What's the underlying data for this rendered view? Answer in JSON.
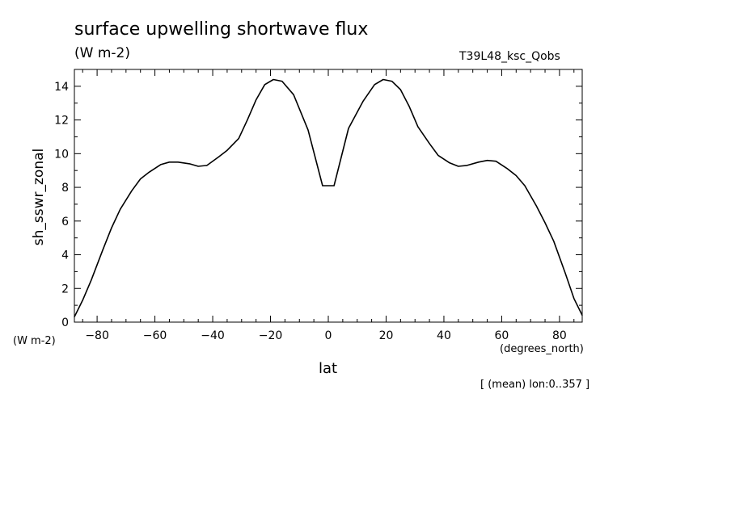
{
  "chart_data": {
    "type": "line",
    "title": "surface upwelling shortwave flux",
    "units_label": "(W m-2)",
    "run_label": "T39L48_ksc_Qobs",
    "ylabel": "sh_sswr_zonal",
    "yunits": "(W m-2)",
    "xlabel": "lat",
    "xunits": "(degrees_north)",
    "footnote": "[ (mean) lon:0..357 ]",
    "xlim": [
      -87.86,
      87.86
    ],
    "ylim": [
      0,
      15
    ],
    "xticks": [
      -80,
      -60,
      -40,
      -20,
      0,
      20,
      40,
      60,
      80
    ],
    "yticks": [
      0,
      2,
      4,
      6,
      8,
      10,
      12,
      14
    ],
    "grid": false,
    "series": [
      {
        "x": [
          -87.9,
          -85,
          -82,
          -78,
          -75,
          -72,
          -68,
          -65,
          -62,
          -58,
          -55,
          -52,
          -48,
          -45,
          -42,
          -38,
          -35,
          -31,
          -28,
          -25,
          -22,
          -19,
          -16,
          -12,
          -7,
          -2,
          2,
          7,
          12,
          16,
          19,
          22,
          25,
          28,
          31,
          35,
          38,
          42,
          45,
          48,
          52,
          55,
          58,
          62,
          65,
          68,
          72,
          75,
          78,
          82,
          85,
          87.9
        ],
        "y": [
          0.3,
          1.3,
          2.5,
          4.3,
          5.6,
          6.7,
          7.8,
          8.5,
          8.9,
          9.35,
          9.5,
          9.5,
          9.4,
          9.25,
          9.3,
          9.8,
          10.2,
          10.9,
          12.0,
          13.2,
          14.1,
          14.4,
          14.3,
          13.5,
          11.4,
          8.1,
          8.1,
          11.5,
          13.1,
          14.1,
          14.4,
          14.3,
          13.8,
          12.8,
          11.6,
          10.6,
          9.9,
          9.45,
          9.25,
          9.3,
          9.5,
          9.6,
          9.55,
          9.1,
          8.7,
          8.1,
          6.9,
          5.9,
          4.8,
          2.9,
          1.4,
          0.4
        ]
      }
    ]
  }
}
